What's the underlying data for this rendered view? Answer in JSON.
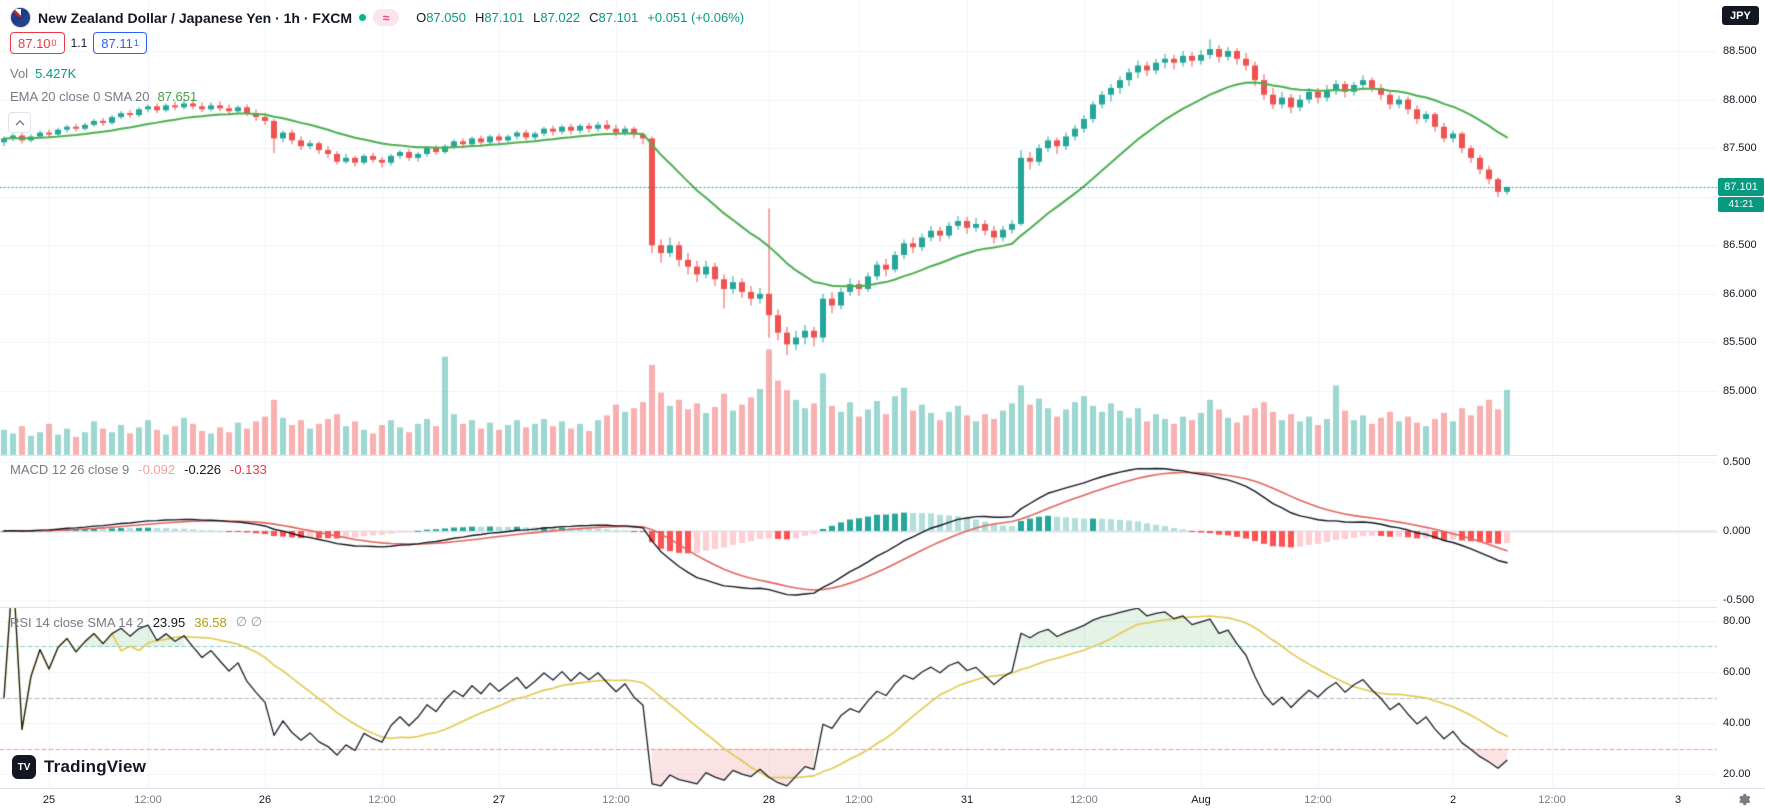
{
  "header": {
    "symbol_title": "New Zealand Dollar / Japanese Yen · 1h · FXCM",
    "ohlc": {
      "o_label": "O",
      "o": "87.050",
      "h_label": "H",
      "h": "87.101",
      "l_label": "L",
      "l": "87.022",
      "c_label": "C",
      "c": "87.101",
      "change": "+0.051 (+0.06%)"
    },
    "sell_main": "87.10",
    "sell_sup": "0",
    "spread": "1.1",
    "buy_main": "87.11",
    "buy_sup": "1"
  },
  "legends": {
    "volume": {
      "label": "Vol",
      "value": "5.427K"
    },
    "ema": {
      "label": "EMA 20 close 0 SMA 20",
      "value": "87.651"
    },
    "macd": {
      "label": "MACD 12 26 close 9",
      "hist": "-0.092",
      "macd": "-0.226",
      "signal": "-0.133"
    },
    "rsi": {
      "label": "RSI 14 close SMA 14 2",
      "value": "23.95",
      "ma": "36.58",
      "extra": "∅ ∅"
    }
  },
  "price_scale": {
    "unit_badge": "JPY",
    "last_price": "87.101",
    "countdown": "41:21"
  },
  "branding": {
    "logo_text": "TradingView"
  },
  "colors": {
    "up": "#26a69a",
    "down": "#ef5350",
    "vol_up": "rgba(38,166,154,0.45)",
    "vol_down": "rgba(239,83,80,0.45)",
    "ema": "#4caf50",
    "macd_line": "#131722",
    "signal_line": "#e3655f",
    "hist_grow_above": "#26a69a",
    "hist_fall_above": "#b2dfdb",
    "hist_grow_below": "#ffcdd2",
    "hist_fall_below": "#ff5252",
    "rsi_line": "#1b1f27",
    "rsi_ma": "#e2c94f",
    "band_upper": "rgba(38,166,154,0.55)",
    "band_middle": "rgba(120,123,134,0.55)",
    "band_lower": "rgba(239,83,80,0.6)",
    "fill_over": "rgba(76,175,80,0.15)",
    "fill_under": "rgba(239,83,80,0.16)",
    "grid": "#f0f3fa",
    "badge": "#089981",
    "text": "#131722",
    "muted": "#787b86"
  },
  "chart_data": {
    "type": "candlestick",
    "title": "NZDJPY 1h FXCM",
    "interval": "1h",
    "legend_position": "top-left",
    "grid": true,
    "last_price": 87.101,
    "price_ylim": [
      84.34,
      88.66
    ],
    "macd_ylim": [
      -0.54,
      0.56
    ],
    "rsi_ylim": [
      15,
      85
    ],
    "rsi_bands": {
      "upper": 70,
      "middle": 50,
      "lower": 30
    },
    "ema_length": 20,
    "macd_params": {
      "fast": 12,
      "slow": 26,
      "signal": 9
    },
    "rsi_params": {
      "length": 14,
      "smoothing": 14
    },
    "price_ticks": [
      {
        "label": "88.500",
        "value": 88.5
      },
      {
        "label": "88.000",
        "value": 88.0
      },
      {
        "label": "87.500",
        "value": 87.5
      },
      {
        "label": "86.500",
        "value": 86.5
      },
      {
        "label": "86.000",
        "value": 86.0
      },
      {
        "label": "85.500",
        "value": 85.5
      },
      {
        "label": "85.000",
        "value": 85.0
      }
    ],
    "macd_ticks": [
      {
        "label": "0.500",
        "value": 0.5
      },
      {
        "label": "0.000",
        "value": 0.0
      },
      {
        "label": "-0.500",
        "value": -0.5
      }
    ],
    "rsi_ticks": [
      {
        "label": "80.00",
        "value": 80
      },
      {
        "label": "60.00",
        "value": 60
      },
      {
        "label": "40.00",
        "value": 40
      },
      {
        "label": "20.00",
        "value": 20
      }
    ],
    "time_ticks": [
      {
        "label": "25",
        "bar": 5,
        "major": true
      },
      {
        "label": "12:00",
        "bar": 16,
        "major": false
      },
      {
        "label": "26",
        "bar": 29,
        "major": true
      },
      {
        "label": "12:00",
        "bar": 42,
        "major": false
      },
      {
        "label": "27",
        "bar": 55,
        "major": true
      },
      {
        "label": "12:00",
        "bar": 68,
        "major": false
      },
      {
        "label": "28",
        "bar": 85,
        "major": true
      },
      {
        "label": "12:00",
        "bar": 95,
        "major": false
      },
      {
        "label": "31",
        "bar": 107,
        "major": true
      },
      {
        "label": "12:00",
        "bar": 120,
        "major": false
      },
      {
        "label": "Aug",
        "bar": 133,
        "major": true
      },
      {
        "label": "12:00",
        "bar": 146,
        "major": false
      },
      {
        "label": "2",
        "bar": 161,
        "major": true
      },
      {
        "label": "12:00",
        "bar": 172,
        "major": false
      },
      {
        "label": "3",
        "bar": 186,
        "major": true
      }
    ],
    "candles": [
      [
        87.56,
        87.62,
        87.52,
        87.6
      ],
      [
        87.6,
        87.65,
        87.57,
        87.63
      ],
      [
        87.63,
        87.66,
        87.55,
        87.58
      ],
      [
        87.58,
        87.64,
        87.56,
        87.62
      ],
      [
        87.62,
        87.68,
        87.6,
        87.66
      ],
      [
        87.66,
        87.69,
        87.61,
        87.64
      ],
      [
        87.64,
        87.71,
        87.62,
        87.69
      ],
      [
        87.69,
        87.74,
        87.66,
        87.72
      ],
      [
        87.72,
        87.75,
        87.67,
        87.7
      ],
      [
        87.7,
        87.76,
        87.68,
        87.74
      ],
      [
        87.74,
        87.8,
        87.72,
        87.78
      ],
      [
        87.78,
        87.81,
        87.73,
        87.76
      ],
      [
        87.76,
        87.84,
        87.74,
        87.82
      ],
      [
        87.82,
        87.88,
        87.8,
        87.86
      ],
      [
        87.86,
        87.89,
        87.81,
        87.84
      ],
      [
        87.84,
        87.92,
        87.82,
        87.9
      ],
      [
        87.9,
        87.95,
        87.87,
        87.93
      ],
      [
        87.93,
        87.96,
        87.86,
        87.89
      ],
      [
        87.89,
        87.96,
        87.87,
        87.94
      ],
      [
        87.94,
        87.98,
        87.89,
        87.92
      ],
      [
        87.92,
        88.0,
        87.9,
        87.96
      ],
      [
        87.96,
        88.01,
        87.9,
        87.93
      ],
      [
        87.93,
        87.97,
        87.87,
        87.9
      ],
      [
        87.9,
        87.97,
        87.88,
        87.94
      ],
      [
        87.94,
        87.98,
        87.88,
        87.91
      ],
      [
        87.91,
        87.95,
        87.84,
        87.88
      ],
      [
        87.88,
        87.94,
        87.85,
        87.92
      ],
      [
        87.92,
        87.95,
        87.83,
        87.86
      ],
      [
        87.86,
        87.9,
        87.78,
        87.82
      ],
      [
        87.82,
        87.86,
        87.74,
        87.78
      ],
      [
        87.78,
        87.8,
        87.45,
        87.6
      ],
      [
        87.6,
        87.68,
        87.56,
        87.66
      ],
      [
        87.66,
        87.69,
        87.54,
        87.58
      ],
      [
        87.58,
        87.62,
        87.48,
        87.52
      ],
      [
        87.52,
        87.58,
        87.49,
        87.55
      ],
      [
        87.55,
        87.57,
        87.44,
        87.48
      ],
      [
        87.48,
        87.52,
        87.4,
        87.44
      ],
      [
        87.44,
        87.47,
        87.33,
        87.36
      ],
      [
        87.36,
        87.44,
        87.34,
        87.4
      ],
      [
        87.4,
        87.42,
        87.31,
        87.35
      ],
      [
        87.35,
        87.44,
        87.33,
        87.42
      ],
      [
        87.42,
        87.45,
        87.35,
        87.38
      ],
      [
        87.38,
        87.41,
        87.3,
        87.35
      ],
      [
        87.35,
        87.44,
        87.32,
        87.42
      ],
      [
        87.42,
        87.48,
        87.39,
        87.46
      ],
      [
        87.46,
        87.49,
        87.37,
        87.4
      ],
      [
        87.4,
        87.46,
        87.36,
        87.44
      ],
      [
        87.44,
        87.52,
        87.41,
        87.5
      ],
      [
        87.5,
        87.53,
        87.43,
        87.46
      ],
      [
        87.46,
        87.54,
        87.44,
        87.52
      ],
      [
        87.52,
        87.59,
        87.49,
        87.57
      ],
      [
        87.57,
        87.6,
        87.5,
        87.54
      ],
      [
        87.54,
        87.62,
        87.51,
        87.6
      ],
      [
        87.6,
        87.63,
        87.52,
        87.56
      ],
      [
        87.56,
        87.64,
        87.53,
        87.62
      ],
      [
        87.62,
        87.65,
        87.54,
        87.58
      ],
      [
        87.58,
        87.64,
        87.55,
        87.62
      ],
      [
        87.62,
        87.68,
        87.59,
        87.66
      ],
      [
        87.66,
        87.69,
        87.57,
        87.61
      ],
      [
        87.61,
        87.67,
        87.58,
        87.65
      ],
      [
        87.65,
        87.72,
        87.62,
        87.7
      ],
      [
        87.7,
        87.73,
        87.63,
        87.67
      ],
      [
        87.67,
        87.74,
        87.64,
        87.72
      ],
      [
        87.72,
        87.75,
        87.64,
        87.68
      ],
      [
        87.68,
        87.75,
        87.65,
        87.73
      ],
      [
        87.73,
        87.76,
        87.66,
        87.7
      ],
      [
        87.7,
        87.77,
        87.67,
        87.74
      ],
      [
        87.74,
        87.79,
        87.68,
        87.7
      ],
      [
        87.7,
        87.74,
        87.62,
        87.66
      ],
      [
        87.66,
        87.73,
        87.63,
        87.7
      ],
      [
        87.7,
        87.72,
        87.6,
        87.64
      ],
      [
        87.64,
        87.66,
        87.54,
        87.6
      ],
      [
        87.6,
        87.62,
        86.42,
        86.5
      ],
      [
        86.5,
        86.56,
        86.32,
        86.42
      ],
      [
        86.42,
        86.58,
        86.38,
        86.5
      ],
      [
        86.5,
        86.54,
        86.28,
        86.35
      ],
      [
        86.35,
        86.42,
        86.2,
        86.28
      ],
      [
        86.28,
        86.34,
        86.12,
        86.2
      ],
      [
        86.2,
        86.34,
        86.16,
        86.28
      ],
      [
        86.28,
        86.32,
        86.08,
        86.15
      ],
      [
        86.15,
        86.2,
        85.85,
        86.05
      ],
      [
        86.05,
        86.18,
        86.0,
        86.12
      ],
      [
        86.12,
        86.16,
        85.96,
        86.02
      ],
      [
        86.02,
        86.08,
        85.88,
        85.95
      ],
      [
        85.95,
        86.06,
        85.9,
        86.0
      ],
      [
        86.0,
        86.88,
        85.55,
        85.78
      ],
      [
        85.78,
        85.84,
        85.52,
        85.6
      ],
      [
        85.6,
        85.66,
        85.37,
        85.48
      ],
      [
        85.48,
        85.62,
        85.42,
        85.55
      ],
      [
        85.55,
        85.68,
        85.48,
        85.62
      ],
      [
        85.62,
        85.66,
        85.46,
        85.55
      ],
      [
        85.55,
        86.0,
        85.5,
        85.95
      ],
      [
        85.95,
        86.02,
        85.8,
        85.88
      ],
      [
        85.88,
        86.06,
        85.84,
        86.02
      ],
      [
        86.02,
        86.16,
        85.98,
        86.1
      ],
      [
        86.1,
        86.14,
        85.98,
        86.05
      ],
      [
        86.05,
        86.22,
        86.02,
        86.18
      ],
      [
        86.18,
        86.34,
        86.14,
        86.3
      ],
      [
        86.3,
        86.36,
        86.18,
        86.25
      ],
      [
        86.25,
        86.44,
        86.22,
        86.4
      ],
      [
        86.4,
        86.56,
        86.36,
        86.52
      ],
      [
        86.52,
        86.58,
        86.42,
        86.48
      ],
      [
        86.48,
        86.62,
        86.44,
        86.58
      ],
      [
        86.58,
        86.7,
        86.54,
        86.65
      ],
      [
        86.65,
        86.69,
        86.54,
        86.6
      ],
      [
        86.6,
        86.74,
        86.57,
        86.7
      ],
      [
        86.7,
        86.8,
        86.66,
        86.75
      ],
      [
        86.75,
        86.79,
        86.62,
        86.68
      ],
      [
        86.68,
        86.78,
        86.64,
        86.72
      ],
      [
        86.72,
        86.76,
        86.6,
        86.65
      ],
      [
        86.65,
        86.7,
        86.52,
        86.58
      ],
      [
        86.58,
        86.7,
        86.54,
        86.66
      ],
      [
        86.66,
        86.76,
        86.62,
        86.72
      ],
      [
        86.72,
        87.48,
        86.7,
        87.4
      ],
      [
        87.4,
        87.46,
        87.28,
        87.36
      ],
      [
        87.36,
        87.54,
        87.32,
        87.5
      ],
      [
        87.5,
        87.62,
        87.46,
        87.58
      ],
      [
        87.58,
        87.61,
        87.44,
        87.52
      ],
      [
        87.52,
        87.66,
        87.48,
        87.62
      ],
      [
        87.62,
        87.74,
        87.58,
        87.7
      ],
      [
        87.7,
        87.84,
        87.66,
        87.8
      ],
      [
        87.8,
        87.98,
        87.76,
        87.95
      ],
      [
        87.95,
        88.09,
        87.91,
        88.05
      ],
      [
        88.05,
        88.16,
        87.98,
        88.12
      ],
      [
        88.12,
        88.24,
        88.06,
        88.2
      ],
      [
        88.2,
        88.32,
        88.14,
        88.28
      ],
      [
        88.28,
        88.4,
        88.22,
        88.35
      ],
      [
        88.35,
        88.39,
        88.24,
        88.3
      ],
      [
        88.3,
        88.42,
        88.26,
        88.38
      ],
      [
        88.38,
        88.47,
        88.32,
        88.42
      ],
      [
        88.42,
        88.46,
        88.31,
        88.38
      ],
      [
        88.38,
        88.5,
        88.34,
        88.45
      ],
      [
        88.45,
        88.49,
        88.34,
        88.4
      ],
      [
        88.4,
        88.51,
        88.36,
        88.46
      ],
      [
        88.46,
        88.62,
        88.42,
        88.52
      ],
      [
        88.52,
        88.56,
        88.38,
        88.44
      ],
      [
        88.44,
        88.54,
        88.4,
        88.5
      ],
      [
        88.5,
        88.53,
        88.36,
        88.42
      ],
      [
        88.42,
        88.48,
        88.3,
        88.35
      ],
      [
        88.35,
        88.39,
        88.14,
        88.2
      ],
      [
        88.2,
        88.26,
        88.0,
        88.05
      ],
      [
        88.05,
        88.12,
        87.9,
        87.95
      ],
      [
        87.95,
        88.08,
        87.91,
        88.02
      ],
      [
        88.02,
        88.06,
        87.86,
        87.92
      ],
      [
        87.92,
        88.05,
        87.88,
        88.0
      ],
      [
        88.0,
        88.12,
        87.96,
        88.08
      ],
      [
        88.08,
        88.12,
        87.96,
        88.02
      ],
      [
        88.02,
        88.15,
        87.98,
        88.1
      ],
      [
        88.1,
        88.2,
        88.05,
        88.16
      ],
      [
        88.16,
        88.19,
        88.02,
        88.08
      ],
      [
        88.08,
        88.18,
        88.04,
        88.15
      ],
      [
        88.15,
        88.25,
        88.1,
        88.2
      ],
      [
        88.2,
        88.23,
        88.08,
        88.12
      ],
      [
        88.12,
        88.16,
        88.0,
        88.05
      ],
      [
        88.05,
        88.09,
        87.9,
        87.95
      ],
      [
        87.95,
        88.04,
        87.91,
        88.0
      ],
      [
        88.0,
        88.03,
        87.85,
        87.9
      ],
      [
        87.9,
        87.94,
        87.75,
        87.8
      ],
      [
        87.8,
        87.88,
        87.76,
        87.85
      ],
      [
        87.85,
        87.87,
        87.67,
        87.72
      ],
      [
        87.72,
        87.76,
        87.56,
        87.6
      ],
      [
        87.6,
        87.68,
        87.56,
        87.65
      ],
      [
        87.65,
        87.67,
        87.45,
        87.5
      ],
      [
        87.5,
        87.53,
        87.35,
        87.4
      ],
      [
        87.4,
        87.43,
        87.23,
        87.28
      ],
      [
        87.28,
        87.32,
        87.13,
        87.18
      ],
      [
        87.18,
        87.2,
        87.0,
        87.05
      ],
      [
        87.05,
        87.101,
        87.022,
        87.101
      ]
    ],
    "volumes": [
      2.1,
      1.8,
      2.4,
      1.6,
      1.9,
      2.6,
      1.7,
      2.2,
      1.5,
      1.9,
      2.8,
      2.2,
      1.9,
      2.5,
      1.8,
      2.3,
      2.9,
      2.1,
      1.7,
      2.4,
      3.1,
      2.6,
      2.0,
      1.8,
      2.3,
      1.9,
      2.7,
      2.2,
      2.8,
      3.2,
      4.6,
      3.1,
      2.5,
      2.9,
      2.2,
      2.6,
      3.0,
      3.4,
      2.4,
      2.8,
      2.1,
      1.8,
      2.5,
      2.9,
      2.3,
      1.9,
      2.6,
      3.0,
      2.4,
      8.2,
      3.4,
      2.6,
      2.9,
      2.2,
      2.7,
      2.1,
      2.5,
      2.9,
      2.3,
      2.6,
      3.0,
      2.4,
      2.8,
      2.2,
      2.6,
      2.0,
      2.9,
      3.3,
      4.2,
      3.6,
      3.9,
      4.4,
      7.5,
      5.2,
      4.1,
      4.6,
      3.8,
      4.3,
      3.5,
      4.0,
      5.1,
      3.7,
      4.2,
      4.8,
      5.5,
      8.8,
      6.2,
      5.4,
      4.6,
      3.9,
      4.3,
      6.8,
      4.1,
      3.6,
      4.4,
      3.2,
      3.8,
      4.5,
      3.4,
      4.9,
      5.6,
      3.7,
      4.2,
      3.5,
      2.9,
      3.6,
      4.1,
      3.3,
      2.8,
      3.4,
      3.0,
      3.7,
      4.3,
      5.8,
      4.2,
      4.7,
      3.9,
      3.2,
      3.8,
      4.4,
      4.9,
      4.1,
      3.6,
      4.3,
      3.7,
      3.1,
      3.9,
      2.8,
      3.4,
      3.0,
      2.6,
      3.2,
      2.9,
      3.5,
      4.6,
      3.8,
      3.1,
      2.7,
      3.3,
      3.9,
      4.4,
      3.6,
      2.9,
      3.4,
      2.8,
      3.2,
      2.5,
      3.0,
      5.8,
      3.7,
      2.9,
      3.3,
      2.6,
      3.1,
      3.6,
      2.8,
      3.2,
      2.7,
      2.4,
      3.0,
      3.5,
      2.8,
      3.9,
      3.3,
      4.1,
      4.6,
      3.8,
      5.427
    ]
  }
}
